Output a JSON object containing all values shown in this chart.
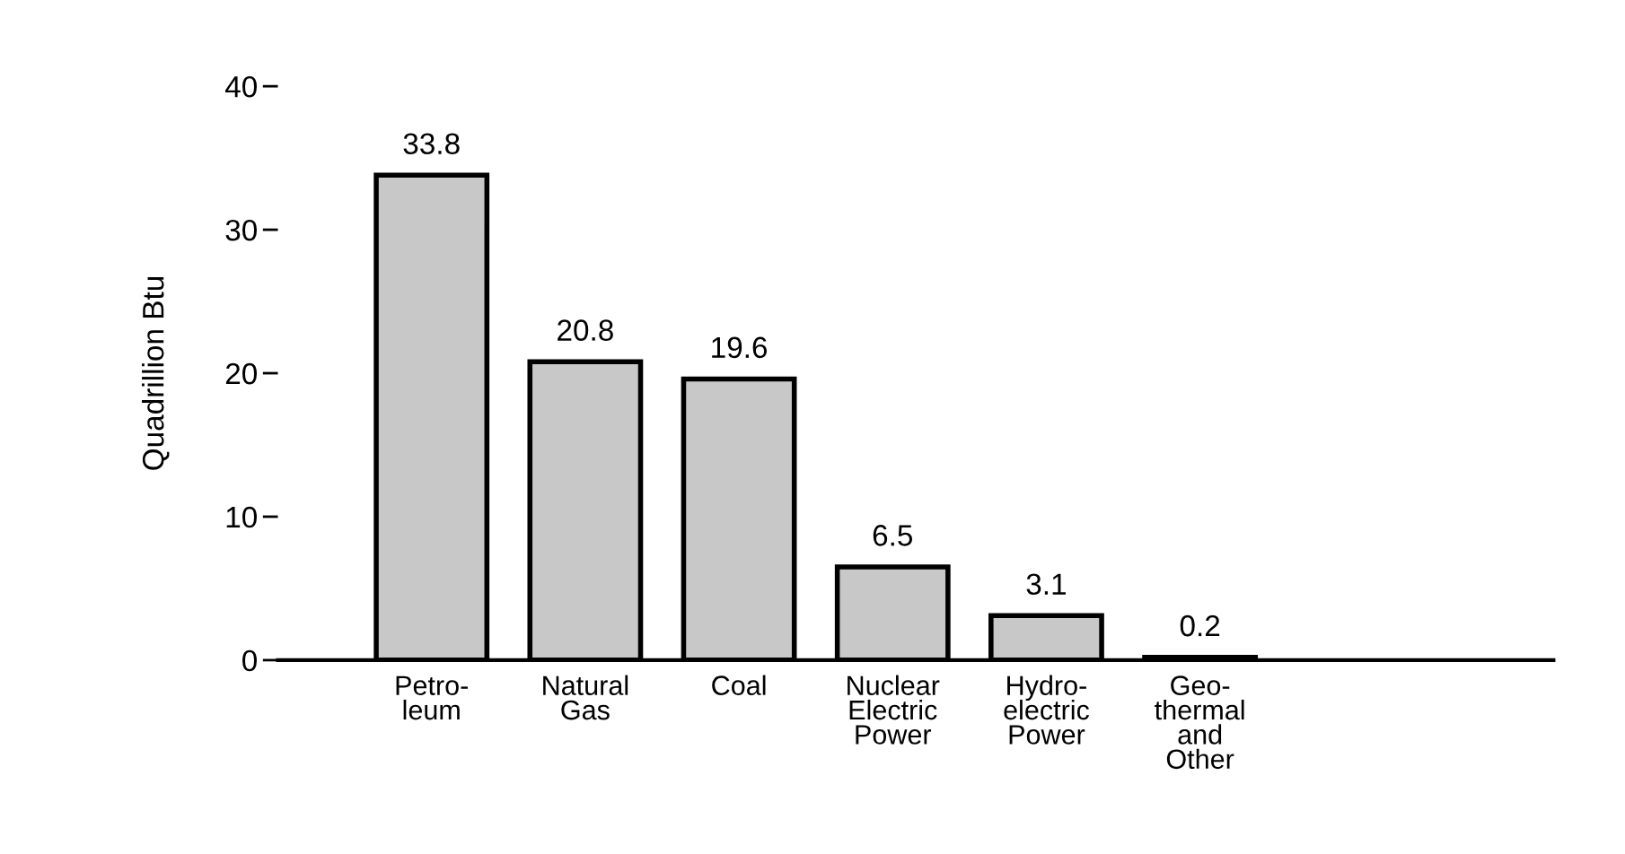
{
  "chart_data": {
    "type": "bar",
    "ylabel": "Quadrillion Btu",
    "categories": [
      "Petro-\nleum",
      "Natural\nGas",
      "Coal",
      "Nuclear\nElectric\nPower",
      "Hydro-\nelectric\nPower",
      "Geo-\nthermal\nand\nOther"
    ],
    "values": [
      33.8,
      20.8,
      19.6,
      6.5,
      3.1,
      0.2
    ],
    "color": "#c8c8c8",
    "ylim": [
      0,
      40
    ],
    "yticks": [
      0,
      10,
      20,
      30,
      40
    ],
    "grid": false,
    "data_labels": true
  }
}
